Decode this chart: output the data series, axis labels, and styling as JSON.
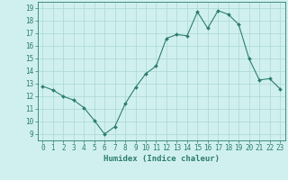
{
  "x": [
    0,
    1,
    2,
    3,
    4,
    5,
    6,
    7,
    8,
    9,
    10,
    11,
    12,
    13,
    14,
    15,
    16,
    17,
    18,
    19,
    20,
    21,
    22,
    23
  ],
  "y": [
    12.8,
    12.5,
    12.0,
    11.7,
    11.1,
    10.1,
    9.0,
    9.6,
    11.4,
    12.7,
    13.8,
    14.4,
    16.6,
    16.9,
    16.8,
    18.7,
    17.4,
    18.8,
    18.5,
    17.7,
    15.0,
    13.3,
    13.4,
    12.6
  ],
  "xlabel": "Humidex (Indice chaleur)",
  "xlim": [
    -0.5,
    23.5
  ],
  "ylim": [
    8.5,
    19.5
  ],
  "yticks": [
    9,
    10,
    11,
    12,
    13,
    14,
    15,
    16,
    17,
    18,
    19
  ],
  "xticks": [
    0,
    1,
    2,
    3,
    4,
    5,
    6,
    7,
    8,
    9,
    10,
    11,
    12,
    13,
    14,
    15,
    16,
    17,
    18,
    19,
    20,
    21,
    22,
    23
  ],
  "line_color": "#2d7d6d",
  "marker": "D",
  "marker_size": 2.0,
  "bg_color": "#d0f0f0",
  "grid_color": "#b0dada",
  "tick_label_color": "#2d7d6d",
  "axis_color": "#2d7d6d",
  "xlabel_fontsize": 6.5,
  "tick_fontsize": 5.5
}
